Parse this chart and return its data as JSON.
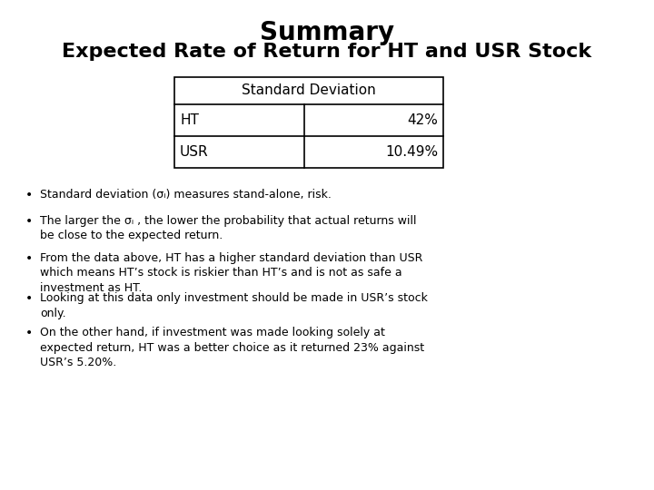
{
  "title": "Summary",
  "subtitle": "Expected Rate of Return for HT and USR Stock",
  "table_header": "Standard Deviation",
  "table_rows": [
    [
      "HT",
      "42%"
    ],
    [
      "USR",
      "10.49%"
    ]
  ],
  "bullets": [
    "Standard deviation (σᵢ) measures stand-alone, risk.",
    "The larger the σᵢ , the lower the probability that actual returns will\nbe close to the expected return.",
    "From the data above, HT has a higher standard deviation than USR\nwhich means HT’s stock is riskier than HT’s and is not as safe a\ninvestment as HT.",
    "Looking at this data only investment should be made in USR’s stock\nonly.",
    "On the other hand, if investment was made looking solely at\nexpected return, HT was a better choice as it returned 23% against\nUSR’s 5.20%."
  ],
  "background_color": "#ffffff",
  "text_color": "#000000",
  "title_fontsize": 20,
  "subtitle_fontsize": 16,
  "bullet_fontsize": 9,
  "table_fontsize": 11
}
